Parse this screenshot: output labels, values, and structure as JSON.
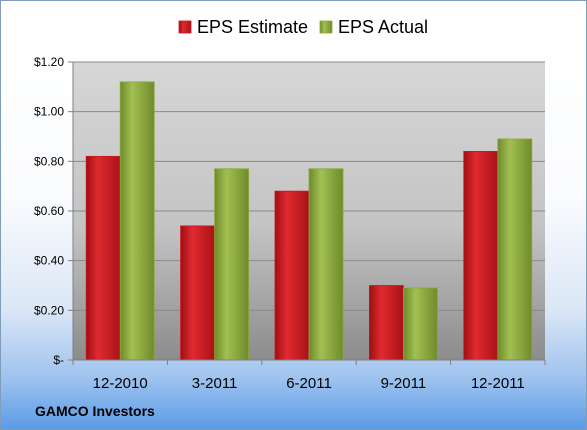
{
  "company": "GAMCO Investors",
  "colors": {
    "estimate": "#c8161d",
    "actual": "#8aa83a",
    "plot_top": "#d6d6d6",
    "plot_bottom": "#8c8c8c"
  },
  "chart_data": {
    "type": "bar",
    "categories": [
      "12-2010",
      "3-2011",
      "6-2011",
      "9-2011",
      "12-2011"
    ],
    "series": [
      {
        "name": "EPS Estimate",
        "values": [
          0.82,
          0.54,
          0.68,
          0.3,
          0.84
        ]
      },
      {
        "name": "EPS Actual",
        "values": [
          1.12,
          0.77,
          0.77,
          0.29,
          0.89
        ]
      }
    ],
    "yticks": [
      {
        "value": 0,
        "label": "$-"
      },
      {
        "value": 0.2,
        "label": "$0.20"
      },
      {
        "value": 0.4,
        "label": "$0.40"
      },
      {
        "value": 0.6,
        "label": "$0.60"
      },
      {
        "value": 0.8,
        "label": "$0.80"
      },
      {
        "value": 1.0,
        "label": "$1.00"
      },
      {
        "value": 1.2,
        "label": "$1.20"
      }
    ],
    "ylim": [
      0,
      1.2
    ],
    "grid": true,
    "legend": "top-center"
  }
}
